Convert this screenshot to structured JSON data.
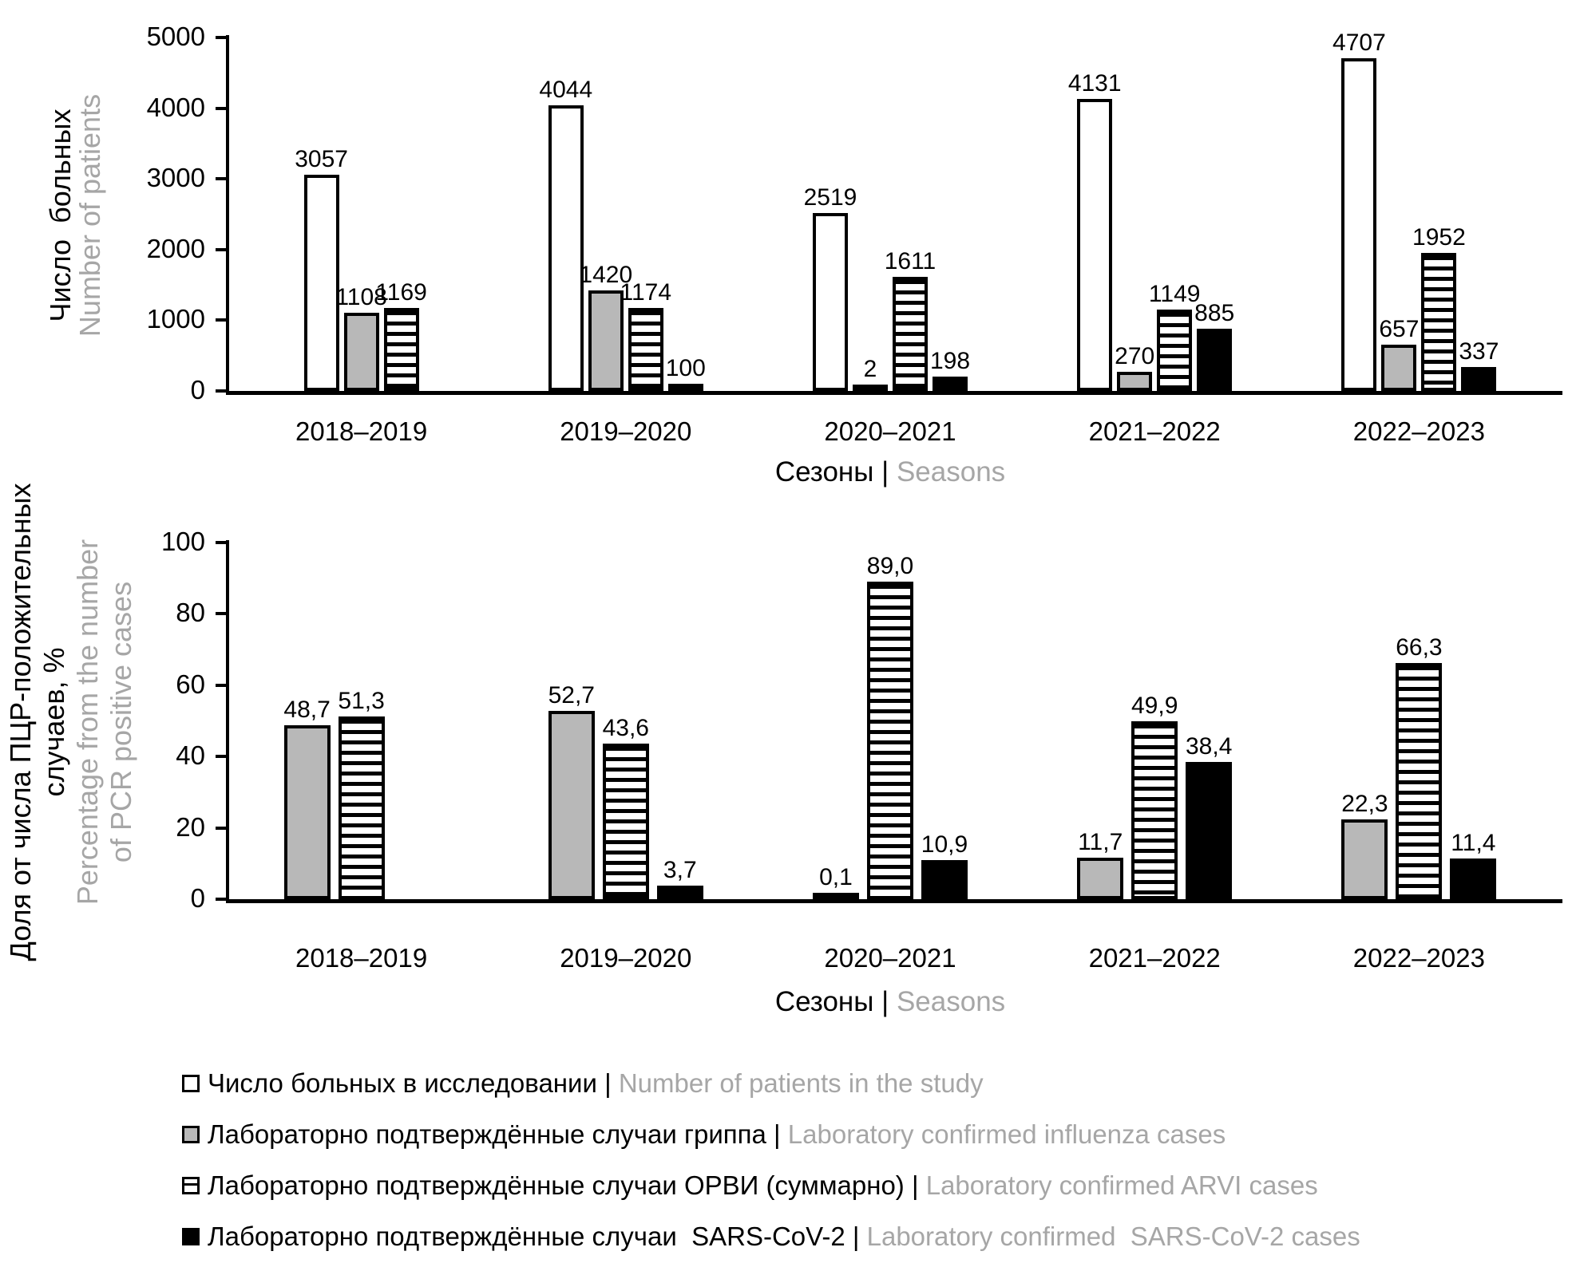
{
  "pipe": " | ",
  "colors": {
    "bar_gray": "#b8b8b8",
    "text_gray": "#a6a6a6",
    "black": "#000000",
    "white": "#ffffff"
  },
  "chart_data": [
    {
      "type": "bar",
      "title": "",
      "categories": [
        "2018–2019",
        "2019–2020",
        "2020–2021",
        "2021–2022",
        "2022–2023"
      ],
      "series": [
        {
          "key": "patients",
          "style": "white",
          "name_ru": "Число больных в исследовании",
          "name_en": "Number of patients in the study",
          "values": [
            3057,
            4044,
            2519,
            4131,
            4707
          ],
          "labels": [
            "3057",
            "4044",
            "2519",
            "4131",
            "4707"
          ]
        },
        {
          "key": "influenza",
          "style": "gray",
          "name_ru": "Лабораторно подтверждённые случаи гриппа",
          "name_en": "Laboratory confirmed influenza cases",
          "values": [
            1108,
            1420,
            2,
            270,
            657
          ],
          "labels": [
            "1108",
            "1420",
            "2",
            "270",
            "657"
          ]
        },
        {
          "key": "arvi",
          "style": "stripe",
          "name_ru": "Лабораторно подтверждённые случаи ОРВИ (суммарно)",
          "name_en": "Laboratory confirmed ARVI cases",
          "values": [
            1169,
            1174,
            1611,
            1149,
            1952
          ],
          "labels": [
            "1169",
            "1174",
            "1611",
            "1149",
            "1952"
          ]
        },
        {
          "key": "sars",
          "style": "black",
          "name_ru": "Лабораторно подтверждённые случаи  SARS-CoV-2",
          "name_en": "Laboratory confirmed  SARS-CoV-2 cases",
          "values": [
            null,
            100,
            198,
            885,
            337
          ],
          "labels": [
            null,
            "100",
            "198",
            "885",
            "337"
          ]
        }
      ],
      "ylabel_ru": "Число  больных",
      "ylabel_en": "Number of patients",
      "xlabel_ru": "Сезоны",
      "xlabel_en": "Seasons",
      "ylim": [
        0,
        5000
      ],
      "yticks": [
        "0",
        "1000",
        "2000",
        "3000",
        "4000",
        "5000"
      ],
      "grid": false,
      "legend_position": "bottom",
      "null_mode": "skip"
    },
    {
      "type": "bar",
      "title": "",
      "categories": [
        "2018–2019",
        "2019–2020",
        "2020–2021",
        "2021–2022",
        "2022–2023"
      ],
      "series": [
        {
          "key": "influenza",
          "style": "gray",
          "name_ru": "Лабораторно подтверждённые случаи гриппа",
          "name_en": "Laboratory confirmed influenza cases",
          "values": [
            48.7,
            52.7,
            0.1,
            11.7,
            22.3
          ],
          "labels": [
            "48,7",
            "52,7",
            "0,1",
            "11,7",
            "22,3"
          ]
        },
        {
          "key": "arvi",
          "style": "stripe",
          "name_ru": "Лабораторно подтверждённые случаи ОРВИ (суммарно)",
          "name_en": "Laboratory confirmed ARVI cases",
          "values": [
            51.3,
            43.6,
            89.0,
            49.9,
            66.3
          ],
          "labels": [
            "51,3",
            "43,6",
            "89,0",
            "49,9",
            "66,3"
          ]
        },
        {
          "key": "sars",
          "style": "black",
          "name_ru": "Лабораторно подтверждённые случаи  SARS-CoV-2",
          "name_en": "Laboratory confirmed  SARS-CoV-2 cases",
          "values": [
            null,
            3.7,
            10.9,
            38.4,
            11.4
          ],
          "labels": [
            null,
            "3,7",
            "10,9",
            "38,4",
            "11,4"
          ]
        }
      ],
      "ylabel_ru_line1": "Доля от числа ПЦР-положительных",
      "ylabel_ru_line2": "случаев, %",
      "ylabel_en_line1": "Percentage from the number",
      "ylabel_en_line2": "of PCR positive cases",
      "xlabel_ru": "Сезоны",
      "xlabel_en": "Seasons",
      "ylim": [
        0,
        100
      ],
      "yticks": [
        "0",
        "20",
        "40",
        "60",
        "80",
        "100"
      ],
      "grid": false,
      "legend_position": "bottom",
      "null_mode": "spacer"
    }
  ],
  "legend": {
    "items": [
      {
        "style": "white",
        "ru": "Число больных в исследовании",
        "en": "Number of patients in the study"
      },
      {
        "style": "gray",
        "ru": "Лабораторно подтверждённые случаи гриппа",
        "en": "Laboratory confirmed influenza cases"
      },
      {
        "style": "stripe",
        "ru": "Лабораторно подтверждённые случаи ОРВИ (суммарно)",
        "en": "Laboratory confirmed ARVI cases"
      },
      {
        "style": "black",
        "ru": "Лабораторно подтверждённые случаи  SARS-CoV-2",
        "en": "Laboratory confirmed  SARS-CoV-2 cases"
      }
    ]
  }
}
